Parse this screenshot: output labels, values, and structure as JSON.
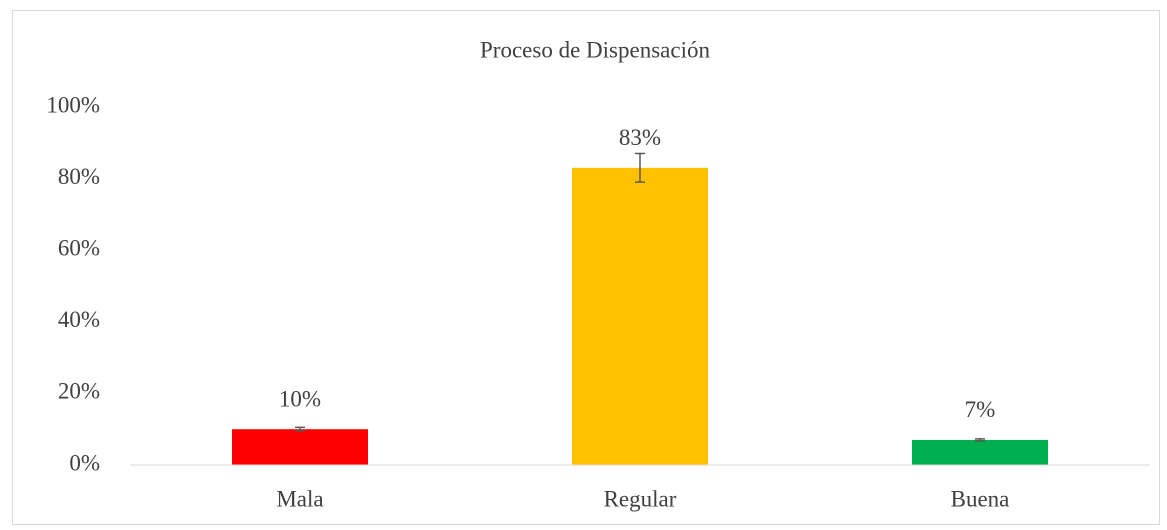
{
  "chart_data": {
    "type": "bar",
    "title": "Proceso de Dispensación",
    "categories": [
      "Mala",
      "Regular",
      "Buena"
    ],
    "values": [
      10,
      83,
      7
    ],
    "value_labels": [
      "10%",
      "83%",
      "7%"
    ],
    "errors": [
      0.5,
      4,
      0.3
    ],
    "colors": [
      "#ff0000",
      "#ffc000",
      "#00b050"
    ],
    "ylim": [
      0,
      100
    ],
    "yticks": [
      {
        "value": 0,
        "label": "0%"
      },
      {
        "value": 20,
        "label": "20%"
      },
      {
        "value": 40,
        "label": "40%"
      },
      {
        "value": 60,
        "label": "60%"
      },
      {
        "value": 80,
        "label": "80%"
      },
      {
        "value": 100,
        "label": "100%"
      }
    ],
    "grid": false
  }
}
